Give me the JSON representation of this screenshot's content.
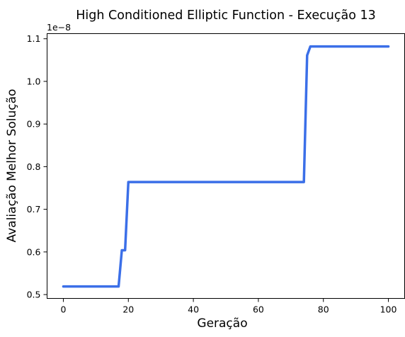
{
  "chart_data": {
    "type": "line",
    "title": "High Conditioned Elliptic Function - Execução 13",
    "xlabel": "Geração",
    "ylabel": "Avaliação Melhor Solução",
    "y_offset_label": "1e−8",
    "xlim": [
      -5,
      105
    ],
    "ylim": [
      0.491,
      1.112
    ],
    "x_ticks": [
      0,
      20,
      40,
      60,
      80,
      100
    ],
    "x_tick_labels": [
      "0",
      "20",
      "40",
      "60",
      "80",
      "100"
    ],
    "y_ticks": [
      0.5,
      0.6,
      0.7,
      0.8,
      0.9,
      1.0,
      1.1
    ],
    "y_tick_labels": [
      "0.5",
      "0.6",
      "0.7",
      "0.8",
      "0.9",
      "1.0",
      "1.1"
    ],
    "grid": false,
    "series": [
      {
        "color": "#3b6fe8",
        "x": [
          0,
          17,
          18,
          19,
          20,
          74,
          75,
          76,
          100
        ],
        "y": [
          0.519,
          0.519,
          0.604,
          0.604,
          0.764,
          0.764,
          1.061,
          1.082,
          1.082
        ]
      }
    ]
  }
}
